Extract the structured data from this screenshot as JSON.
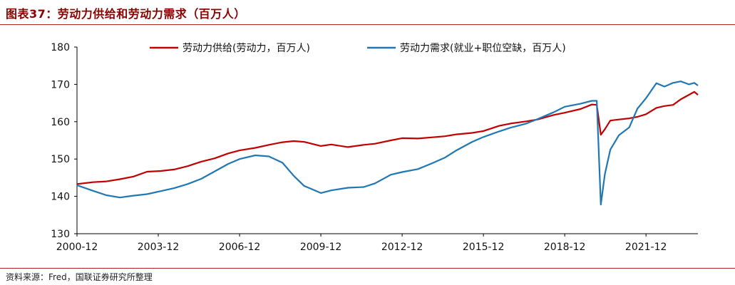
{
  "figure": {
    "title": "图表37：劳动力供给和劳动力需求（百万人）",
    "source": "资料来源：Fred，国联证券研究所整理"
  },
  "colors": {
    "supply": "#c00000",
    "demand": "#1f77b4",
    "rule": "#b22222"
  },
  "chart_data": {
    "type": "line",
    "title": "",
    "xlabel": "",
    "ylabel": "",
    "ylim": [
      130,
      180
    ],
    "yticks": [
      130,
      140,
      150,
      160,
      170,
      180
    ],
    "xlim": [
      2000.917,
      2023.833
    ],
    "xtick_values": [
      2000.917,
      2003.917,
      2006.917,
      2009.917,
      2012.917,
      2015.917,
      2018.917,
      2021.917
    ],
    "xtick_labels": [
      "2000-12",
      "2003-12",
      "2006-12",
      "2009-12",
      "2012-12",
      "2015-12",
      "2018-12",
      "2021-12"
    ],
    "grid": false,
    "legend": "top",
    "series": [
      {
        "name": "劳动力供给(劳动力，百万人)",
        "color": "#c00000",
        "points": [
          [
            2000.917,
            143.3
          ],
          [
            2001.5,
            143.8
          ],
          [
            2002.0,
            144.0
          ],
          [
            2002.5,
            144.6
          ],
          [
            2003.0,
            145.3
          ],
          [
            2003.5,
            146.6
          ],
          [
            2004.0,
            146.8
          ],
          [
            2004.5,
            147.2
          ],
          [
            2005.0,
            148.1
          ],
          [
            2005.5,
            149.3
          ],
          [
            2006.0,
            150.2
          ],
          [
            2006.5,
            151.5
          ],
          [
            2006.917,
            152.3
          ],
          [
            2007.5,
            153.0
          ],
          [
            2008.0,
            153.8
          ],
          [
            2008.5,
            154.5
          ],
          [
            2008.917,
            154.8
          ],
          [
            2009.3,
            154.6
          ],
          [
            2009.917,
            153.5
          ],
          [
            2010.3,
            153.9
          ],
          [
            2010.917,
            153.2
          ],
          [
            2011.5,
            153.8
          ],
          [
            2011.917,
            154.1
          ],
          [
            2012.5,
            155.0
          ],
          [
            2012.917,
            155.6
          ],
          [
            2013.5,
            155.5
          ],
          [
            2014.0,
            155.8
          ],
          [
            2014.5,
            156.1
          ],
          [
            2014.917,
            156.6
          ],
          [
            2015.5,
            157.0
          ],
          [
            2015.917,
            157.5
          ],
          [
            2016.5,
            158.9
          ],
          [
            2016.917,
            159.5
          ],
          [
            2017.5,
            160.1
          ],
          [
            2017.917,
            160.6
          ],
          [
            2018.5,
            161.8
          ],
          [
            2018.917,
            162.4
          ],
          [
            2019.5,
            163.4
          ],
          [
            2019.917,
            164.6
          ],
          [
            2020.1,
            164.5
          ],
          [
            2020.25,
            156.5
          ],
          [
            2020.4,
            158.0
          ],
          [
            2020.6,
            160.3
          ],
          [
            2020.917,
            160.6
          ],
          [
            2021.3,
            160.9
          ],
          [
            2021.6,
            161.3
          ],
          [
            2021.917,
            162.0
          ],
          [
            2022.3,
            163.7
          ],
          [
            2022.6,
            164.2
          ],
          [
            2022.917,
            164.5
          ],
          [
            2023.2,
            166.0
          ],
          [
            2023.5,
            167.2
          ],
          [
            2023.7,
            168.0
          ],
          [
            2023.833,
            167.2
          ]
        ]
      },
      {
        "name": "劳动力需求(就业+职位空缺，百万人)",
        "color": "#1f77b4",
        "points": [
          [
            2000.917,
            143.0
          ],
          [
            2001.5,
            141.5
          ],
          [
            2002.0,
            140.3
          ],
          [
            2002.5,
            139.7
          ],
          [
            2003.0,
            140.2
          ],
          [
            2003.5,
            140.6
          ],
          [
            2004.0,
            141.4
          ],
          [
            2004.5,
            142.2
          ],
          [
            2005.0,
            143.3
          ],
          [
            2005.5,
            144.7
          ],
          [
            2006.0,
            146.7
          ],
          [
            2006.5,
            148.7
          ],
          [
            2006.917,
            150.0
          ],
          [
            2007.5,
            151.0
          ],
          [
            2008.0,
            150.7
          ],
          [
            2008.5,
            149.0
          ],
          [
            2008.917,
            145.5
          ],
          [
            2009.3,
            142.8
          ],
          [
            2009.917,
            140.9
          ],
          [
            2010.3,
            141.6
          ],
          [
            2010.917,
            142.3
          ],
          [
            2011.5,
            142.5
          ],
          [
            2011.917,
            143.5
          ],
          [
            2012.5,
            145.8
          ],
          [
            2012.917,
            146.5
          ],
          [
            2013.5,
            147.3
          ],
          [
            2014.0,
            148.8
          ],
          [
            2014.5,
            150.4
          ],
          [
            2014.917,
            152.3
          ],
          [
            2015.5,
            154.6
          ],
          [
            2015.917,
            155.9
          ],
          [
            2016.5,
            157.4
          ],
          [
            2016.917,
            158.4
          ],
          [
            2017.5,
            159.5
          ],
          [
            2017.917,
            160.7
          ],
          [
            2018.5,
            162.5
          ],
          [
            2018.917,
            164.0
          ],
          [
            2019.5,
            164.8
          ],
          [
            2019.917,
            165.6
          ],
          [
            2020.1,
            165.6
          ],
          [
            2020.25,
            137.8
          ],
          [
            2020.4,
            146.0
          ],
          [
            2020.6,
            152.5
          ],
          [
            2020.917,
            156.4
          ],
          [
            2021.3,
            158.5
          ],
          [
            2021.6,
            163.5
          ],
          [
            2021.917,
            166.3
          ],
          [
            2022.3,
            170.3
          ],
          [
            2022.6,
            169.4
          ],
          [
            2022.917,
            170.4
          ],
          [
            2023.2,
            170.8
          ],
          [
            2023.5,
            170.0
          ],
          [
            2023.7,
            170.4
          ],
          [
            2023.833,
            169.7
          ]
        ]
      }
    ]
  }
}
